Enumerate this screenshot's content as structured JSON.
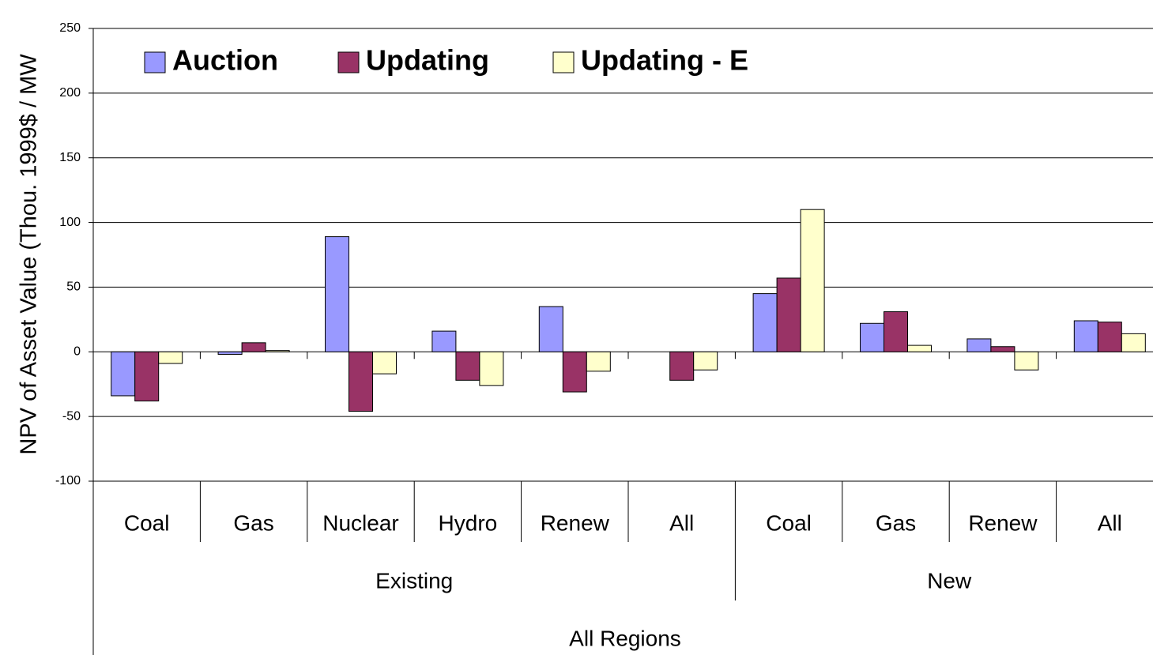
{
  "chart_data": {
    "type": "bar",
    "y_label": "NPV of Asset Value (Thou. 1999$ / MW",
    "categories": [
      "Coal",
      "Gas",
      "Nuclear",
      "Hydro",
      "Renew",
      "All",
      "Coal",
      "Gas",
      "Renew",
      "All"
    ],
    "groups": [
      {
        "name": "Existing",
        "span": 6
      },
      {
        "name": "New",
        "span": 4
      }
    ],
    "super_group": "All Regions",
    "series": [
      {
        "name": "Auction",
        "color": "#9999ff",
        "values": [
          -34,
          -2,
          89,
          16,
          35,
          null,
          45,
          22,
          10,
          24
        ]
      },
      {
        "name": "Updating",
        "color": "#993366",
        "values": [
          -38,
          7,
          -46,
          -22,
          -31,
          -22,
          57,
          31,
          4,
          23
        ]
      },
      {
        "name": "Updating - E",
        "color": "#ffffcc",
        "values": [
          -9,
          1,
          -17,
          -26,
          -15,
          -14,
          110,
          5,
          -14,
          14
        ]
      }
    ],
    "ylim": [
      -100,
      250
    ],
    "yticks": [
      -100,
      -50,
      0,
      50,
      100,
      150,
      200,
      250
    ],
    "grid": true
  }
}
